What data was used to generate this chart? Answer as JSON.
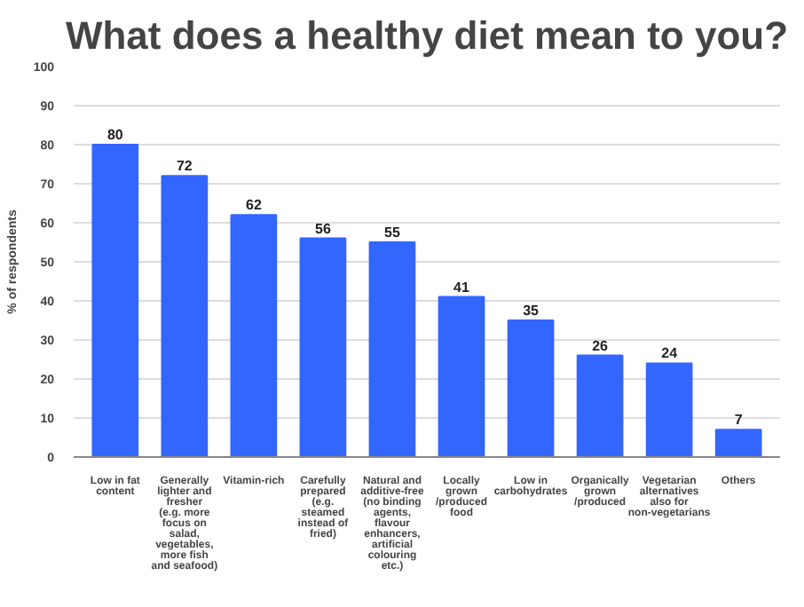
{
  "chart_data": {
    "type": "bar",
    "title": "What does a healthy diet mean to you?",
    "ylabel": "% of respondents",
    "categories": [
      "Low in fat content",
      "Generally lighter and fresher (e.g. more focus on salad, vegetables, more fish and seafood)",
      "Vitamin-rich",
      "Carefully prepared (e.g. steamed instead of fried)",
      "Natural and additive-free (no binding agents, flavour enhancers, artificial colouring etc.)",
      "Locally grown /produced food",
      "Low in carbohydrates",
      "Organically grown /produced",
      "Vegetarian alternatives also for non-vegetarians",
      "Others"
    ],
    "values": [
      80,
      72,
      62,
      56,
      55,
      41,
      35,
      26,
      24,
      7
    ],
    "color": "#3366ff",
    "ylim": [
      0,
      100
    ],
    "yticks": [
      0,
      10,
      20,
      30,
      40,
      50,
      60,
      70,
      80,
      90,
      100
    ],
    "grid": "y",
    "data_labels": true
  }
}
